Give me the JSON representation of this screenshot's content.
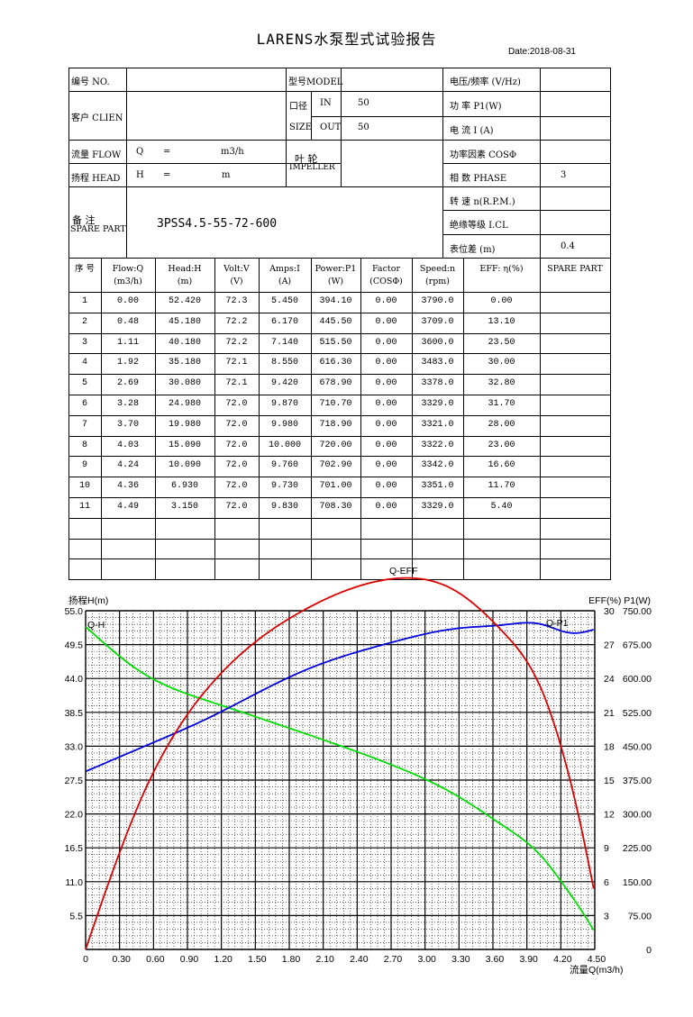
{
  "title": "LARENS水泵型式试验报告",
  "date": "Date:2018-08-31",
  "info": {
    "no_label": "编号  NO.",
    "model_label": "型号MODEL",
    "voltage_label": "电压/频率 (V/Hz)",
    "client_label": "客户 CLIEN",
    "port_label": "口径",
    "size_label": "SIZE",
    "in_label": "IN",
    "in_value": "50",
    "out_label": "OUT",
    "out_value": "50",
    "power_label": "功  率    P1(W)",
    "current_label": "电  流    I (A)",
    "flow_label": "流量 FLOW",
    "flow_q": "Q",
    "flow_eq": "=",
    "flow_unit": "m3/h",
    "head_label": "扬程 HEAD",
    "head_h": "H",
    "head_eq": "=",
    "head_unit": "m",
    "impeller_cn": "叶  轮",
    "impeller_en": "IMPELLER",
    "pf_label": "功率因素  COSΦ",
    "phase_label": "相  数    PHASE",
    "phase_value": "3",
    "speed_label": "转  速 n(R.P.M.)",
    "insulation_label": "绝缘等级   I.CL",
    "meter_label": "表位差 (m)",
    "meter_value": "0.4",
    "remark_cn": "备    注",
    "remark_en": "SPARE PART",
    "remark_value": "3PSS4.5-55-72-600"
  },
  "table": {
    "headers": [
      [
        "序 号",
        ""
      ],
      [
        "Flow:Q",
        "(m3/h)"
      ],
      [
        "Head:H",
        "(m)"
      ],
      [
        "Volt:V",
        "(V)"
      ],
      [
        "Amps:I",
        "(A)"
      ],
      [
        "Power:P1",
        "(W)"
      ],
      [
        "Factor",
        "(COSΦ)"
      ],
      [
        "Speed:n",
        "(rpm)"
      ],
      [
        "EFF: η(%)",
        ""
      ],
      [
        "SPARE PART",
        ""
      ]
    ],
    "rows": [
      [
        "1",
        "0.00",
        "52.420",
        "72.3",
        "5.450",
        "394.10",
        "0.00",
        "3790.0",
        "0.00",
        ""
      ],
      [
        "2",
        "0.48",
        "45.180",
        "72.2",
        "6.170",
        "445.50",
        "0.00",
        "3709.0",
        "13.10",
        ""
      ],
      [
        "3",
        "1.11",
        "40.180",
        "72.2",
        "7.140",
        "515.50",
        "0.00",
        "3600.0",
        "23.50",
        ""
      ],
      [
        "4",
        "1.92",
        "35.180",
        "72.1",
        "8.550",
        "616.30",
        "0.00",
        "3483.0",
        "30.00",
        ""
      ],
      [
        "5",
        "2.69",
        "30.080",
        "72.1",
        "9.420",
        "678.90",
        "0.00",
        "3378.0",
        "32.80",
        ""
      ],
      [
        "6",
        "3.28",
        "24.980",
        "72.0",
        "9.870",
        "710.70",
        "0.00",
        "3329.0",
        "31.70",
        ""
      ],
      [
        "7",
        "3.70",
        "19.980",
        "72.0",
        "9.980",
        "718.90",
        "0.00",
        "3321.0",
        "28.00",
        ""
      ],
      [
        "8",
        "4.03",
        "15.090",
        "72.0",
        "10.000",
        "720.00",
        "0.00",
        "3322.0",
        "23.00",
        ""
      ],
      [
        "9",
        "4.24",
        "10.090",
        "72.0",
        "9.760",
        "702.90",
        "0.00",
        "3342.0",
        "16.60",
        ""
      ],
      [
        "10",
        "4.36",
        "6.930",
        "72.0",
        "9.730",
        "701.00",
        "0.00",
        "3351.0",
        "11.70",
        ""
      ],
      [
        "11",
        "4.49",
        "3.150",
        "72.0",
        "9.830",
        "708.30",
        "0.00",
        "3329.0",
        "5.40",
        ""
      ],
      [
        "",
        "",
        "",
        "",
        "",
        "",
        "",
        "",
        "",
        ""
      ],
      [
        "",
        "",
        "",
        "",
        "",
        "",
        "",
        "",
        "",
        ""
      ],
      [
        "",
        "",
        "",
        "",
        "",
        "",
        "",
        "",
        "",
        ""
      ]
    ]
  },
  "chart_data": {
    "type": "line",
    "xlabel": "流量Q(m3/h)",
    "ylabel_left": "扬程H(m)",
    "ylabel_right": "EFF(%) P1(W)",
    "x_ticks": [
      "0",
      "0.30",
      "0.60",
      "0.90",
      "1.20",
      "1.50",
      "1.80",
      "2.10",
      "2.40",
      "2.70",
      "3.00",
      "3.30",
      "3.60",
      "3.90",
      "4.20",
      "4.50"
    ],
    "xlim": [
      0,
      4.5
    ],
    "left_ticks": [
      "5.5",
      "11.0",
      "16.5",
      "22.0",
      "27.5",
      "33.0",
      "38.5",
      "44.0",
      "49.5",
      "55.0"
    ],
    "left_lim": [
      0,
      55
    ],
    "eff_ticks": [
      "3",
      "6",
      "9",
      "12",
      "15",
      "18",
      "21",
      "24",
      "27",
      "30"
    ],
    "eff_lim": [
      0,
      30
    ],
    "p1_ticks": [
      "0",
      "75.00",
      "150.00",
      "225.00",
      "300.00",
      "375.00",
      "450.00",
      "525.00",
      "600.00",
      "675.00",
      "750.00"
    ],
    "p1_lim": [
      0,
      750
    ],
    "series": [
      {
        "name": "Q-H",
        "color": "#00dd00",
        "axis": "head",
        "x": [
          0.0,
          0.48,
          1.11,
          1.92,
          2.69,
          3.28,
          3.7,
          4.03,
          4.24,
          4.36,
          4.49
        ],
        "y": [
          52.42,
          45.18,
          40.18,
          35.18,
          30.08,
          24.98,
          19.98,
          15.09,
          10.09,
          6.93,
          3.15
        ]
      },
      {
        "name": "Q-P1",
        "color": "#0000dd",
        "axis": "p1",
        "x": [
          0.0,
          0.48,
          1.11,
          1.92,
          2.69,
          3.28,
          3.7,
          4.03,
          4.24,
          4.36,
          4.49
        ],
        "y": [
          394.1,
          445.5,
          515.5,
          616.3,
          678.9,
          710.7,
          718.9,
          720.0,
          702.9,
          701.0,
          708.3
        ]
      },
      {
        "name": "Q-EFF",
        "color": "#dd0000",
        "axis": "eff",
        "x": [
          0.0,
          0.48,
          1.11,
          1.92,
          2.69,
          3.28,
          3.7,
          4.03,
          4.24,
          4.36,
          4.49
        ],
        "y": [
          0.0,
          13.1,
          23.5,
          30.0,
          32.8,
          31.7,
          28.0,
          23.0,
          16.6,
          11.7,
          5.4
        ]
      }
    ]
  }
}
